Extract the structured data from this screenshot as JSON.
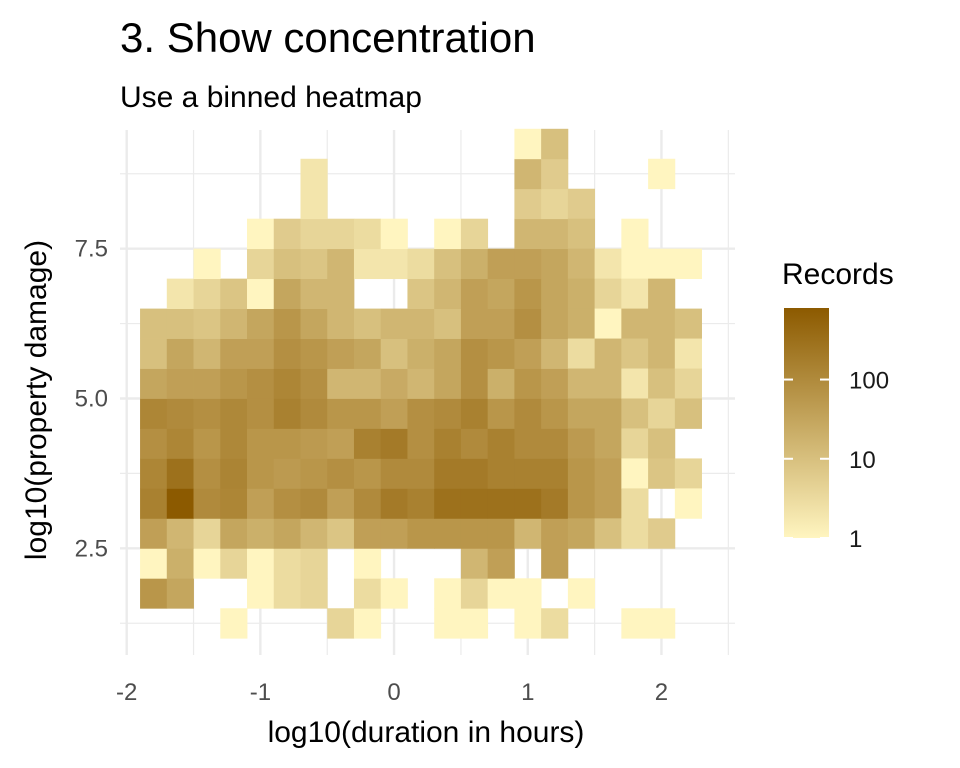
{
  "chart_data": {
    "type": "heatmap",
    "title": "3. Show concentration",
    "subtitle": "Use a binned heatmap",
    "xlabel": "log10(duration in hours)",
    "ylabel": "log10(property damage)",
    "xlim": [
      -2.05,
      2.55
    ],
    "ylim": [
      0.72,
      9.48
    ],
    "x_ticks": [
      -2,
      -1,
      0,
      1,
      2
    ],
    "x_tick_labels": [
      "-2",
      "-1",
      "0",
      "1",
      "2"
    ],
    "y_ticks": [
      2.5,
      5.0,
      7.5
    ],
    "y_tick_labels": [
      "2.5",
      "5.0",
      "7.5"
    ],
    "grid": true,
    "bin_x0": -1.9,
    "bin_width_x": 0.2,
    "bin_y0": 1.0,
    "bin_width_y": 0.5,
    "color_scale": "log10",
    "color_low": "#FFF5C0",
    "color_high": "#8C5A00",
    "legend": {
      "title": "Records",
      "placement": "right",
      "min": 1,
      "max": 800,
      "ticks": [
        1,
        10,
        100
      ],
      "tick_labels": [
        "1",
        "10",
        "100"
      ]
    },
    "cells": [
      {
        "x": -1.8,
        "y": 1.75,
        "count": 60
      },
      {
        "x": -1.6,
        "y": 1.75,
        "count": 30
      },
      {
        "x": -1.8,
        "y": 2.25,
        "count": 1
      },
      {
        "x": -1.6,
        "y": 2.25,
        "count": 20
      },
      {
        "x": -1.4,
        "y": 2.25,
        "count": 1
      },
      {
        "x": -1.2,
        "y": 2.25,
        "count": 4
      },
      {
        "x": -1.8,
        "y": 2.75,
        "count": 40
      },
      {
        "x": -1.6,
        "y": 2.75,
        "count": 15
      },
      {
        "x": -1.4,
        "y": 2.75,
        "count": 4
      },
      {
        "x": -1.2,
        "y": 2.75,
        "count": 30
      },
      {
        "x": -1.8,
        "y": 3.25,
        "count": 150
      },
      {
        "x": -1.6,
        "y": 3.25,
        "count": 800
      },
      {
        "x": -1.4,
        "y": 3.25,
        "count": 100
      },
      {
        "x": -1.2,
        "y": 3.25,
        "count": 120
      },
      {
        "x": -1.8,
        "y": 3.75,
        "count": 120
      },
      {
        "x": -1.6,
        "y": 3.75,
        "count": 300
      },
      {
        "x": -1.4,
        "y": 3.75,
        "count": 80
      },
      {
        "x": -1.2,
        "y": 3.75,
        "count": 130
      },
      {
        "x": -1.8,
        "y": 4.25,
        "count": 80
      },
      {
        "x": -1.6,
        "y": 4.25,
        "count": 120
      },
      {
        "x": -1.4,
        "y": 4.25,
        "count": 60
      },
      {
        "x": -1.2,
        "y": 4.25,
        "count": 110
      },
      {
        "x": -1.8,
        "y": 4.75,
        "count": 120
      },
      {
        "x": -1.6,
        "y": 4.75,
        "count": 100
      },
      {
        "x": -1.4,
        "y": 4.75,
        "count": 80
      },
      {
        "x": -1.2,
        "y": 4.75,
        "count": 110
      },
      {
        "x": -1.8,
        "y": 5.25,
        "count": 30
      },
      {
        "x": -1.6,
        "y": 5.25,
        "count": 40
      },
      {
        "x": -1.4,
        "y": 5.25,
        "count": 40
      },
      {
        "x": -1.2,
        "y": 5.25,
        "count": 60
      },
      {
        "x": -1.8,
        "y": 5.75,
        "count": 10
      },
      {
        "x": -1.6,
        "y": 5.75,
        "count": 30
      },
      {
        "x": -1.4,
        "y": 5.75,
        "count": 15
      },
      {
        "x": -1.2,
        "y": 5.75,
        "count": 40
      },
      {
        "x": -1.8,
        "y": 6.25,
        "count": 10
      },
      {
        "x": -1.6,
        "y": 6.25,
        "count": 10
      },
      {
        "x": -1.4,
        "y": 6.25,
        "count": 8
      },
      {
        "x": -1.2,
        "y": 6.25,
        "count": 15
      },
      {
        "x": -1.6,
        "y": 6.75,
        "count": 2
      },
      {
        "x": -1.4,
        "y": 6.75,
        "count": 4
      },
      {
        "x": -1.2,
        "y": 6.75,
        "count": 8
      },
      {
        "x": -1.4,
        "y": 7.25,
        "count": 1
      },
      {
        "x": -1.2,
        "y": 1.25,
        "count": 1
      },
      {
        "x": -1.0,
        "y": 1.75,
        "count": 1
      },
      {
        "x": -0.8,
        "y": 1.75,
        "count": 3
      },
      {
        "x": -0.6,
        "y": 1.75,
        "count": 4
      },
      {
        "x": -1.0,
        "y": 2.25,
        "count": 1
      },
      {
        "x": -0.8,
        "y": 2.25,
        "count": 3
      },
      {
        "x": -0.6,
        "y": 2.25,
        "count": 4
      },
      {
        "x": -1.0,
        "y": 2.75,
        "count": 20
      },
      {
        "x": -0.8,
        "y": 2.75,
        "count": 30
      },
      {
        "x": -0.6,
        "y": 2.75,
        "count": 15
      },
      {
        "x": -0.4,
        "y": 2.75,
        "count": 8
      },
      {
        "x": -1.0,
        "y": 3.25,
        "count": 40
      },
      {
        "x": -0.8,
        "y": 3.25,
        "count": 80
      },
      {
        "x": -0.6,
        "y": 3.25,
        "count": 100
      },
      {
        "x": -0.4,
        "y": 3.25,
        "count": 40
      },
      {
        "x": -1.0,
        "y": 3.75,
        "count": 60
      },
      {
        "x": -0.8,
        "y": 3.75,
        "count": 50
      },
      {
        "x": -0.6,
        "y": 3.75,
        "count": 60
      },
      {
        "x": -0.4,
        "y": 3.75,
        "count": 80
      },
      {
        "x": -1.0,
        "y": 4.25,
        "count": 60
      },
      {
        "x": -0.8,
        "y": 4.25,
        "count": 60
      },
      {
        "x": -0.6,
        "y": 4.25,
        "count": 50
      },
      {
        "x": -0.4,
        "y": 4.25,
        "count": 40
      },
      {
        "x": -1.0,
        "y": 4.75,
        "count": 80
      },
      {
        "x": -0.8,
        "y": 4.75,
        "count": 150
      },
      {
        "x": -0.6,
        "y": 4.75,
        "count": 100
      },
      {
        "x": -0.4,
        "y": 4.75,
        "count": 60
      },
      {
        "x": -1.0,
        "y": 5.25,
        "count": 80
      },
      {
        "x": -0.8,
        "y": 5.25,
        "count": 120
      },
      {
        "x": -0.6,
        "y": 5.25,
        "count": 80
      },
      {
        "x": -0.4,
        "y": 5.25,
        "count": 15
      },
      {
        "x": -1.0,
        "y": 5.75,
        "count": 40
      },
      {
        "x": -0.8,
        "y": 5.75,
        "count": 80
      },
      {
        "x": -0.6,
        "y": 5.75,
        "count": 60
      },
      {
        "x": -0.4,
        "y": 5.75,
        "count": 40
      },
      {
        "x": -1.0,
        "y": 6.25,
        "count": 30
      },
      {
        "x": -0.8,
        "y": 6.25,
        "count": 60
      },
      {
        "x": -0.6,
        "y": 6.25,
        "count": 30
      },
      {
        "x": -0.4,
        "y": 6.25,
        "count": 15
      },
      {
        "x": -1.0,
        "y": 6.75,
        "count": 1
      },
      {
        "x": -0.8,
        "y": 6.75,
        "count": 30
      },
      {
        "x": -0.6,
        "y": 6.75,
        "count": 15
      },
      {
        "x": -0.4,
        "y": 6.75,
        "count": 15
      },
      {
        "x": -1.0,
        "y": 7.25,
        "count": 4
      },
      {
        "x": -0.8,
        "y": 7.25,
        "count": 10
      },
      {
        "x": -0.6,
        "y": 7.25,
        "count": 8
      },
      {
        "x": -0.4,
        "y": 7.25,
        "count": 15
      },
      {
        "x": -1.0,
        "y": 7.75,
        "count": 1
      },
      {
        "x": -0.8,
        "y": 7.75,
        "count": 6
      },
      {
        "x": -0.6,
        "y": 7.75,
        "count": 4
      },
      {
        "x": -0.4,
        "y": 7.75,
        "count": 4
      },
      {
        "x": -0.6,
        "y": 8.25,
        "count": 2
      },
      {
        "x": -0.6,
        "y": 8.75,
        "count": 2
      },
      {
        "x": -0.4,
        "y": 1.25,
        "count": 4
      },
      {
        "x": -0.2,
        "y": 1.25,
        "count": 1
      },
      {
        "x": -0.2,
        "y": 1.75,
        "count": 3
      },
      {
        "x": 0.0,
        "y": 1.75,
        "count": 1
      },
      {
        "x": -0.2,
        "y": 2.25,
        "count": 1
      },
      {
        "x": -0.2,
        "y": 2.75,
        "count": 40
      },
      {
        "x": 0.0,
        "y": 2.75,
        "count": 40
      },
      {
        "x": 0.2,
        "y": 2.75,
        "count": 60
      },
      {
        "x": 0.4,
        "y": 2.75,
        "count": 60
      },
      {
        "x": -0.2,
        "y": 3.25,
        "count": 100
      },
      {
        "x": 0.0,
        "y": 3.25,
        "count": 200
      },
      {
        "x": 0.2,
        "y": 3.25,
        "count": 150
      },
      {
        "x": 0.4,
        "y": 3.25,
        "count": 300
      },
      {
        "x": -0.2,
        "y": 3.75,
        "count": 60
      },
      {
        "x": 0.0,
        "y": 3.75,
        "count": 100
      },
      {
        "x": 0.2,
        "y": 3.75,
        "count": 100
      },
      {
        "x": 0.4,
        "y": 3.75,
        "count": 200
      },
      {
        "x": -0.2,
        "y": 4.25,
        "count": 150
      },
      {
        "x": 0.0,
        "y": 4.25,
        "count": 200
      },
      {
        "x": 0.2,
        "y": 4.25,
        "count": 80
      },
      {
        "x": 0.4,
        "y": 4.25,
        "count": 150
      },
      {
        "x": -0.2,
        "y": 4.75,
        "count": 60
      },
      {
        "x": 0.0,
        "y": 4.75,
        "count": 40
      },
      {
        "x": 0.2,
        "y": 4.75,
        "count": 80
      },
      {
        "x": 0.4,
        "y": 4.75,
        "count": 100
      },
      {
        "x": -0.2,
        "y": 5.25,
        "count": 15
      },
      {
        "x": 0.0,
        "y": 5.25,
        "count": 25
      },
      {
        "x": 0.2,
        "y": 5.25,
        "count": 15
      },
      {
        "x": 0.4,
        "y": 5.25,
        "count": 30
      },
      {
        "x": -0.2,
        "y": 5.75,
        "count": 30
      },
      {
        "x": 0.0,
        "y": 5.75,
        "count": 10
      },
      {
        "x": 0.2,
        "y": 5.75,
        "count": 20
      },
      {
        "x": 0.4,
        "y": 5.75,
        "count": 30
      },
      {
        "x": -0.2,
        "y": 6.25,
        "count": 10
      },
      {
        "x": 0.0,
        "y": 6.25,
        "count": 15
      },
      {
        "x": 0.2,
        "y": 6.25,
        "count": 15
      },
      {
        "x": 0.4,
        "y": 6.25,
        "count": 10
      },
      {
        "x": 0.2,
        "y": 6.75,
        "count": 8
      },
      {
        "x": 0.4,
        "y": 6.75,
        "count": 15
      },
      {
        "x": -0.2,
        "y": 7.25,
        "count": 2
      },
      {
        "x": 0.0,
        "y": 7.25,
        "count": 2
      },
      {
        "x": 0.2,
        "y": 7.25,
        "count": 3
      },
      {
        "x": 0.4,
        "y": 7.25,
        "count": 10
      },
      {
        "x": -0.2,
        "y": 7.75,
        "count": 3
      },
      {
        "x": 0.0,
        "y": 7.75,
        "count": 1
      },
      {
        "x": 0.4,
        "y": 7.75,
        "count": 1
      },
      {
        "x": 0.4,
        "y": 1.25,
        "count": 1
      },
      {
        "x": 0.6,
        "y": 1.25,
        "count": 1
      },
      {
        "x": 0.4,
        "y": 1.75,
        "count": 1
      },
      {
        "x": 0.6,
        "y": 1.75,
        "count": 4
      },
      {
        "x": 0.8,
        "y": 1.75,
        "count": 1
      },
      {
        "x": 0.6,
        "y": 2.25,
        "count": 15
      },
      {
        "x": 0.8,
        "y": 2.25,
        "count": 40
      },
      {
        "x": 0.6,
        "y": 2.75,
        "count": 60
      },
      {
        "x": 0.8,
        "y": 2.75,
        "count": 60
      },
      {
        "x": 1.0,
        "y": 2.75,
        "count": 15
      },
      {
        "x": 1.2,
        "y": 2.75,
        "count": 40
      },
      {
        "x": 0.6,
        "y": 3.25,
        "count": 300
      },
      {
        "x": 0.8,
        "y": 3.25,
        "count": 300
      },
      {
        "x": 1.0,
        "y": 3.25,
        "count": 300
      },
      {
        "x": 1.2,
        "y": 3.25,
        "count": 200
      },
      {
        "x": 0.6,
        "y": 3.75,
        "count": 200
      },
      {
        "x": 0.8,
        "y": 3.75,
        "count": 150
      },
      {
        "x": 1.0,
        "y": 3.75,
        "count": 150
      },
      {
        "x": 1.2,
        "y": 3.75,
        "count": 150
      },
      {
        "x": 0.6,
        "y": 4.25,
        "count": 100
      },
      {
        "x": 0.8,
        "y": 4.25,
        "count": 150
      },
      {
        "x": 1.0,
        "y": 4.25,
        "count": 100
      },
      {
        "x": 1.2,
        "y": 4.25,
        "count": 100
      },
      {
        "x": 0.6,
        "y": 4.75,
        "count": 150
      },
      {
        "x": 0.8,
        "y": 4.75,
        "count": 60
      },
      {
        "x": 1.0,
        "y": 4.75,
        "count": 100
      },
      {
        "x": 1.2,
        "y": 4.75,
        "count": 60
      },
      {
        "x": 0.6,
        "y": 5.25,
        "count": 80
      },
      {
        "x": 0.8,
        "y": 5.25,
        "count": 20
      },
      {
        "x": 1.0,
        "y": 5.25,
        "count": 60
      },
      {
        "x": 1.2,
        "y": 5.25,
        "count": 40
      },
      {
        "x": 0.6,
        "y": 5.75,
        "count": 80
      },
      {
        "x": 0.8,
        "y": 5.75,
        "count": 60
      },
      {
        "x": 1.0,
        "y": 5.75,
        "count": 40
      },
      {
        "x": 1.2,
        "y": 5.75,
        "count": 15
      },
      {
        "x": 0.6,
        "y": 6.25,
        "count": 40
      },
      {
        "x": 0.8,
        "y": 6.25,
        "count": 40
      },
      {
        "x": 1.0,
        "y": 6.25,
        "count": 80
      },
      {
        "x": 1.2,
        "y": 6.25,
        "count": 30
      },
      {
        "x": 0.6,
        "y": 6.75,
        "count": 40
      },
      {
        "x": 0.8,
        "y": 6.75,
        "count": 30
      },
      {
        "x": 1.0,
        "y": 6.75,
        "count": 60
      },
      {
        "x": 1.2,
        "y": 6.75,
        "count": 30
      },
      {
        "x": 0.6,
        "y": 7.25,
        "count": 20
      },
      {
        "x": 0.8,
        "y": 7.25,
        "count": 40
      },
      {
        "x": 1.0,
        "y": 7.25,
        "count": 40
      },
      {
        "x": 1.2,
        "y": 7.25,
        "count": 30
      },
      {
        "x": 0.6,
        "y": 7.75,
        "count": 4
      },
      {
        "x": 1.0,
        "y": 7.75,
        "count": 15
      },
      {
        "x": 1.2,
        "y": 7.75,
        "count": 15
      },
      {
        "x": 1.0,
        "y": 8.25,
        "count": 6
      },
      {
        "x": 1.2,
        "y": 8.25,
        "count": 4
      },
      {
        "x": 1.0,
        "y": 8.75,
        "count": 15
      },
      {
        "x": 1.2,
        "y": 8.75,
        "count": 6
      },
      {
        "x": 1.0,
        "y": 9.25,
        "count": 1
      },
      {
        "x": 1.2,
        "y": 9.25,
        "count": 10
      },
      {
        "x": 1.0,
        "y": 1.75,
        "count": 1
      },
      {
        "x": 1.0,
        "y": 1.25,
        "count": 1
      },
      {
        "x": 1.2,
        "y": 1.25,
        "count": 3
      },
      {
        "x": 1.2,
        "y": 2.25,
        "count": 40
      },
      {
        "x": 1.4,
        "y": 1.75,
        "count": 1
      },
      {
        "x": 1.4,
        "y": 8.25,
        "count": 6
      },
      {
        "x": 1.4,
        "y": 7.75,
        "count": 10
      },
      {
        "x": 1.4,
        "y": 7.25,
        "count": 15
      },
      {
        "x": 1.4,
        "y": 6.75,
        "count": 20
      },
      {
        "x": 1.4,
        "y": 6.25,
        "count": 20
      },
      {
        "x": 1.4,
        "y": 5.75,
        "count": 3
      },
      {
        "x": 1.4,
        "y": 5.25,
        "count": 15
      },
      {
        "x": 1.4,
        "y": 4.75,
        "count": 30
      },
      {
        "x": 1.4,
        "y": 4.25,
        "count": 50
      },
      {
        "x": 1.4,
        "y": 3.75,
        "count": 60
      },
      {
        "x": 1.4,
        "y": 3.25,
        "count": 60
      },
      {
        "x": 1.4,
        "y": 2.75,
        "count": 30
      },
      {
        "x": 1.6,
        "y": 7.25,
        "count": 2
      },
      {
        "x": 1.6,
        "y": 6.75,
        "count": 4
      },
      {
        "x": 1.6,
        "y": 6.25,
        "count": 1
      },
      {
        "x": 1.6,
        "y": 5.75,
        "count": 15
      },
      {
        "x": 1.6,
        "y": 5.25,
        "count": 15
      },
      {
        "x": 1.6,
        "y": 4.75,
        "count": 30
      },
      {
        "x": 1.6,
        "y": 4.25,
        "count": 30
      },
      {
        "x": 1.6,
        "y": 3.75,
        "count": 40
      },
      {
        "x": 1.6,
        "y": 3.25,
        "count": 40
      },
      {
        "x": 1.6,
        "y": 2.75,
        "count": 10
      },
      {
        "x": 1.8,
        "y": 7.75,
        "count": 1
      },
      {
        "x": 1.8,
        "y": 7.25,
        "count": 1
      },
      {
        "x": 1.8,
        "y": 6.75,
        "count": 2
      },
      {
        "x": 1.8,
        "y": 6.25,
        "count": 15
      },
      {
        "x": 1.8,
        "y": 5.75,
        "count": 8
      },
      {
        "x": 1.8,
        "y": 5.25,
        "count": 2
      },
      {
        "x": 1.8,
        "y": 4.75,
        "count": 10
      },
      {
        "x": 1.8,
        "y": 4.25,
        "count": 4
      },
      {
        "x": 1.8,
        "y": 3.75,
        "count": 1
      },
      {
        "x": 1.8,
        "y": 3.25,
        "count": 3
      },
      {
        "x": 1.8,
        "y": 2.75,
        "count": 3
      },
      {
        "x": 1.8,
        "y": 1.25,
        "count": 1
      },
      {
        "x": 2.0,
        "y": 8.75,
        "count": 1
      },
      {
        "x": 2.0,
        "y": 7.25,
        "count": 1
      },
      {
        "x": 2.0,
        "y": 6.75,
        "count": 15
      },
      {
        "x": 2.0,
        "y": 6.25,
        "count": 15
      },
      {
        "x": 2.0,
        "y": 5.75,
        "count": 15
      },
      {
        "x": 2.0,
        "y": 5.25,
        "count": 10
      },
      {
        "x": 2.0,
        "y": 4.75,
        "count": 4
      },
      {
        "x": 2.0,
        "y": 4.25,
        "count": 10
      },
      {
        "x": 2.0,
        "y": 3.75,
        "count": 8
      },
      {
        "x": 2.0,
        "y": 2.75,
        "count": 6
      },
      {
        "x": 2.0,
        "y": 1.25,
        "count": 1
      },
      {
        "x": 2.2,
        "y": 7.25,
        "count": 1
      },
      {
        "x": 2.2,
        "y": 6.25,
        "count": 10
      },
      {
        "x": 2.2,
        "y": 5.75,
        "count": 2
      },
      {
        "x": 2.2,
        "y": 5.25,
        "count": 4
      },
      {
        "x": 2.2,
        "y": 4.75,
        "count": 10
      },
      {
        "x": 2.2,
        "y": 3.75,
        "count": 4
      },
      {
        "x": 2.2,
        "y": 3.25,
        "count": 1
      }
    ]
  }
}
